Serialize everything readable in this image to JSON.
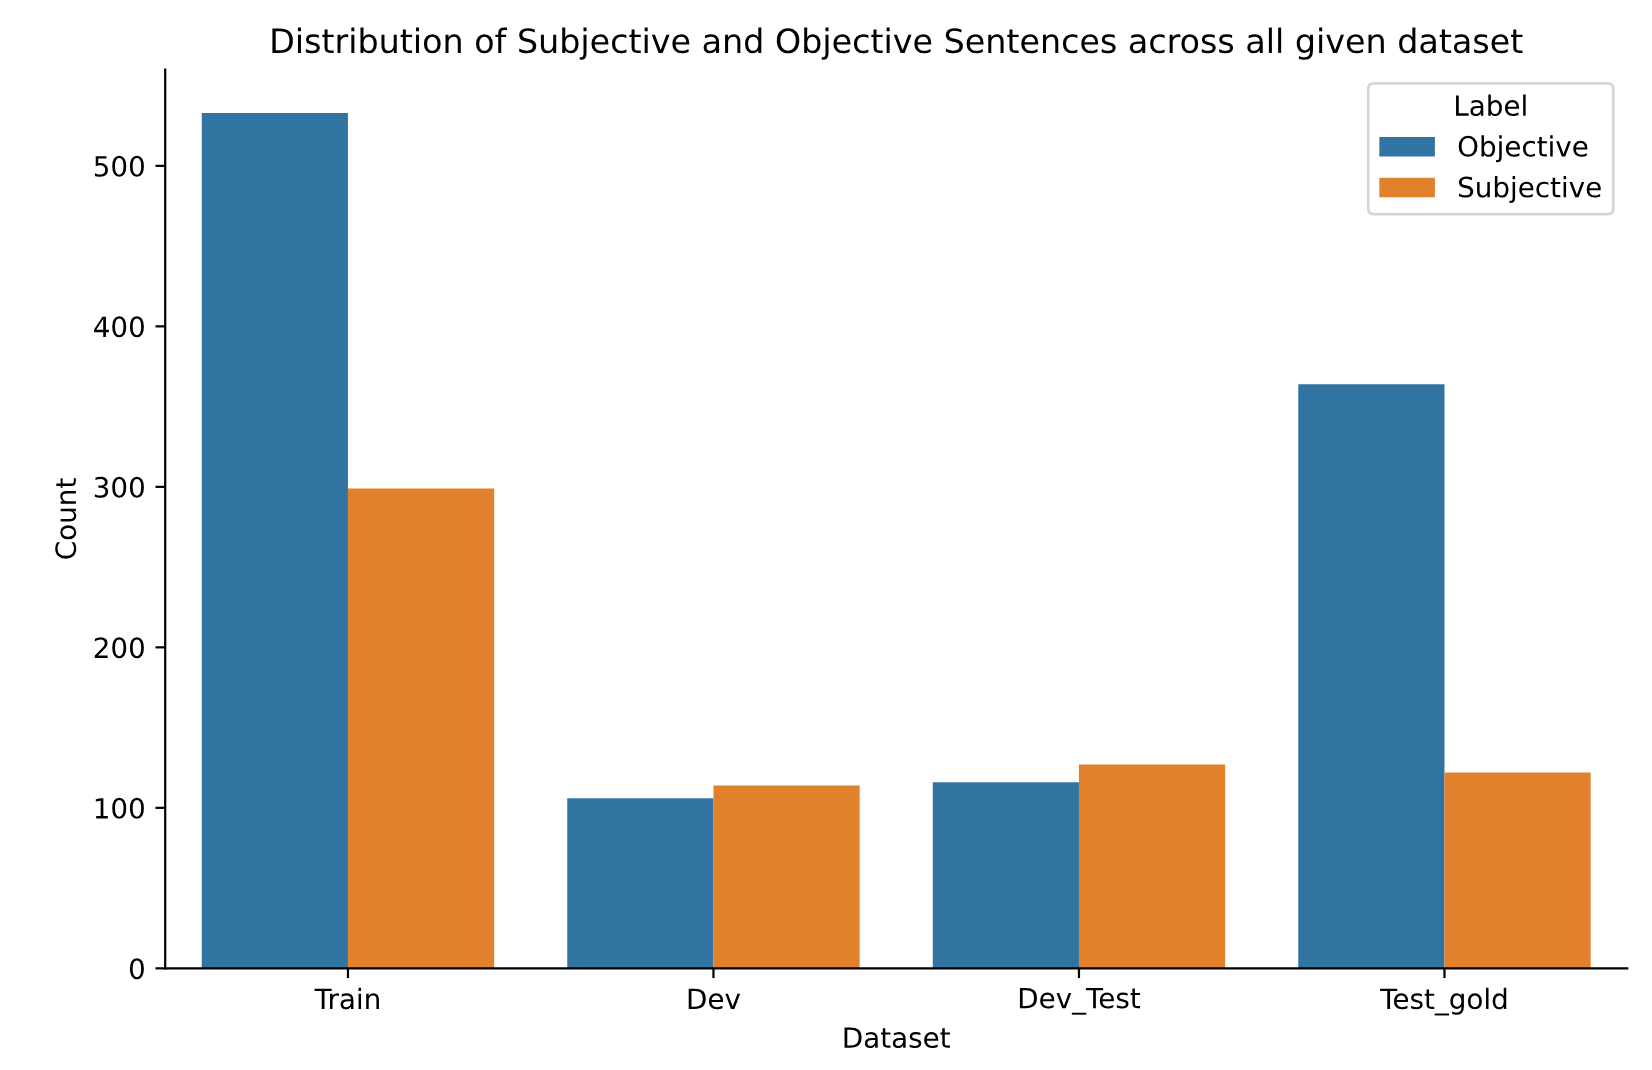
{
  "chart_data": {
    "type": "bar",
    "title": "Distribution of Subjective and Objective Sentences across all given dataset",
    "xlabel": "Dataset",
    "ylabel": "Count",
    "legend_title": "Label",
    "categories": [
      "Train",
      "Dev",
      "Dev_Test",
      "Test_gold"
    ],
    "series": [
      {
        "name": "Objective",
        "color": "#3274a1",
        "values": [
          533,
          106,
          116,
          364
        ]
      },
      {
        "name": "Subjective",
        "color": "#e1812c",
        "values": [
          299,
          114,
          127,
          122
        ]
      }
    ],
    "ylim": [
      0,
      560
    ],
    "yticks": [
      0,
      100,
      200,
      300,
      400,
      500
    ],
    "legend": "top right",
    "grid": false
  }
}
